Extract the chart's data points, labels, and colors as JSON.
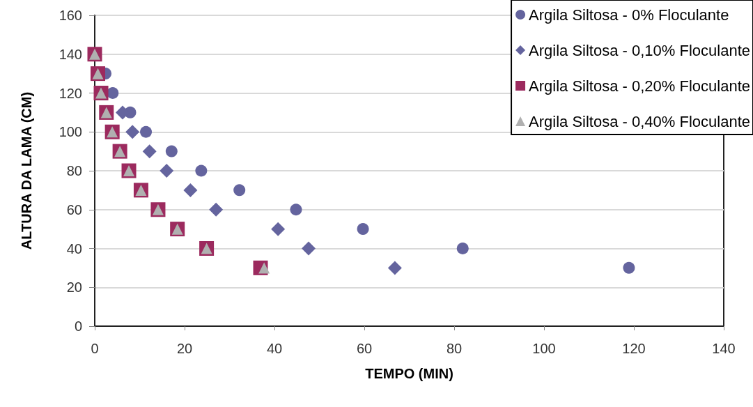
{
  "chart_data": {
    "type": "scatter",
    "xlabel": "TEMPO (MIN)",
    "ylabel": "ALTURA DA LAMA (CM)",
    "xlim": [
      0,
      140
    ],
    "xticks": [
      0,
      20,
      40,
      60,
      80,
      100,
      120,
      140
    ],
    "ylim": [
      0,
      160
    ],
    "yticks": [
      0,
      20,
      40,
      60,
      80,
      100,
      120,
      140,
      160
    ],
    "grid": "y",
    "legend": "top right",
    "series": [
      {
        "name": "Argila Siltosa - 0% Floculante",
        "color": "#64649e",
        "marker": "circle",
        "x": [
          2.4,
          4.0,
          7.9,
          11.4,
          17.1,
          23.7,
          32.2,
          44.8,
          59.7,
          81.9,
          118.9
        ],
        "values": [
          130,
          120,
          110,
          100,
          90,
          80,
          70,
          60,
          50,
          40,
          30
        ]
      },
      {
        "name": "Argila Siltosa - 0,10% Floculante",
        "color": "#64649e",
        "marker": "diamond",
        "x": [
          6.2,
          8.4,
          12.2,
          16.0,
          21.3,
          27.0,
          40.8,
          47.6,
          66.8
        ],
        "values": [
          110,
          100,
          90,
          80,
          70,
          60,
          50,
          40,
          30
        ]
      },
      {
        "name": "Argila Siltosa - 0,20% Floculante",
        "color": "#9c2a5e",
        "marker": "square",
        "x": [
          0,
          0.7,
          1.4,
          2.6,
          3.9,
          5.6,
          7.6,
          10.3,
          14.1,
          18.4,
          24.9,
          36.9
        ],
        "values": [
          140,
          130,
          120,
          110,
          100,
          90,
          80,
          70,
          60,
          50,
          40,
          30
        ]
      },
      {
        "name": "Argila Siltosa - 0,40% Floculante",
        "color": "#b0b0b0",
        "marker": "triangle",
        "x": [
          0,
          0.7,
          1.4,
          2.6,
          3.9,
          5.6,
          7.6,
          10.3,
          14.1,
          18.4,
          24.9,
          37.7
        ],
        "values": [
          140,
          130,
          120,
          110,
          100,
          90,
          80,
          70,
          60,
          50,
          40,
          30
        ]
      }
    ]
  }
}
